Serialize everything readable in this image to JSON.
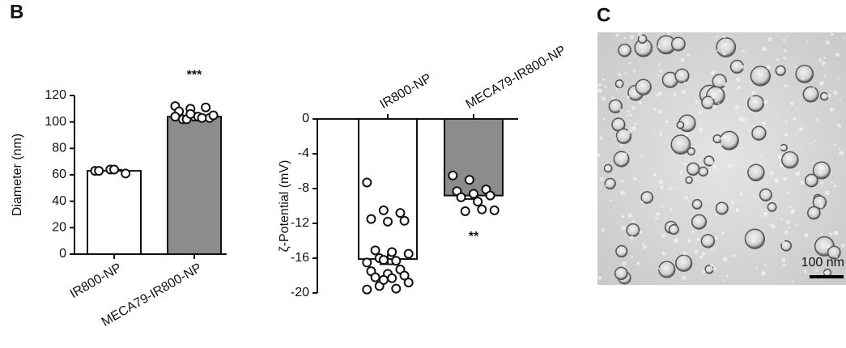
{
  "panel_labels": [
    "B",
    "C"
  ],
  "scale_bar": "100 nm",
  "chart_data": [
    {
      "type": "bar",
      "ylabel": "Diameter (nm)",
      "categories": [
        "IR800-NP",
        "MECA79-IR800-NP"
      ],
      "values": [
        63,
        104
      ],
      "errors": [
        0.8,
        1.2
      ],
      "colors": [
        "#ffffff",
        "#8c8c8c"
      ],
      "points": [
        [
          63,
          64,
          61,
          63,
          64
        ],
        [
          112,
          110,
          111,
          108,
          104,
          103,
          102,
          104,
          105,
          102,
          103,
          104,
          106
        ]
      ],
      "significance": [
        null,
        "***"
      ],
      "ylim": [
        0,
        120
      ],
      "yticks": [
        0,
        20,
        40,
        60,
        80,
        100,
        120
      ]
    },
    {
      "type": "bar",
      "ylabel": "ζ-Potential (mV)",
      "categories": [
        "IR800-NP",
        "MECA79-IR800-NP"
      ],
      "values": [
        -16.1,
        -8.8
      ],
      "errors": [
        0.6,
        0.4
      ],
      "colors": [
        "#ffffff",
        "#8c8c8c"
      ],
      "points": [
        [
          -7.3,
          -10.5,
          -10.8,
          -11.5,
          -11.8,
          -11.7,
          -15.1,
          -15.3,
          -15.5,
          -16,
          -16.3,
          -16.5,
          -16.2,
          -17.3,
          -17.5,
          -17.8,
          -18,
          -18.2,
          -18.3,
          -18.8,
          -19.2,
          -19.5,
          -19.6,
          -18.5
        ],
        [
          -6.5,
          -7,
          -8.1,
          -8.3,
          -8.6,
          -8.8,
          -9,
          -9.5,
          -10.5,
          -10.6,
          -10.4
        ]
      ],
      "significance": [
        null,
        "**"
      ],
      "ylim": [
        -20,
        0
      ],
      "yticks": [
        0,
        -4,
        -8,
        -12,
        -16,
        -20
      ]
    }
  ]
}
